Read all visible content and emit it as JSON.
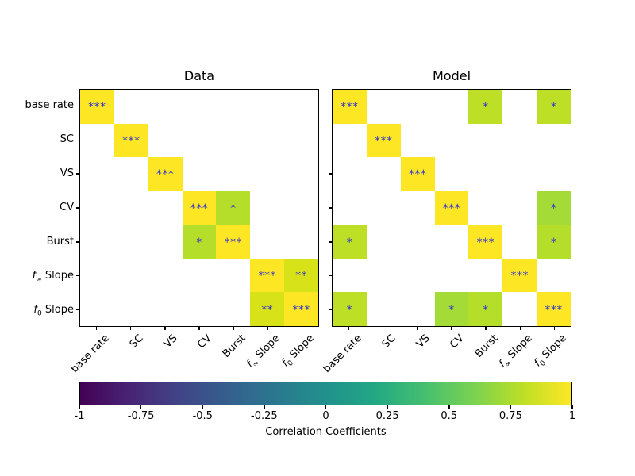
{
  "figure": {
    "background": "#ffffff"
  },
  "colors": {
    "annotation": "#3333cc",
    "axis": "#000000",
    "diagonal": "#fde725"
  },
  "variables": [
    {
      "parts": [
        [
          "t",
          "base rate"
        ]
      ]
    },
    {
      "parts": [
        [
          "t",
          "SC"
        ]
      ]
    },
    {
      "parts": [
        [
          "t",
          "VS"
        ]
      ]
    },
    {
      "parts": [
        [
          "t",
          "CV"
        ]
      ]
    },
    {
      "parts": [
        [
          "t",
          "Burst"
        ]
      ]
    },
    {
      "parts": [
        [
          "i",
          "f"
        ],
        [
          "s",
          "∞"
        ],
        [
          "t",
          " Slope"
        ]
      ]
    },
    {
      "parts": [
        [
          "i",
          "f"
        ],
        [
          "s",
          "0"
        ],
        [
          "t",
          " Slope"
        ]
      ]
    }
  ],
  "panels": [
    {
      "title": "Data",
      "cells": [
        {
          "r": 0,
          "c": 0,
          "color": "#fde725",
          "mark": "***"
        },
        {
          "r": 1,
          "c": 1,
          "color": "#fde725",
          "mark": "***"
        },
        {
          "r": 2,
          "c": 2,
          "color": "#fde725",
          "mark": "***"
        },
        {
          "r": 3,
          "c": 3,
          "color": "#fde725",
          "mark": "***"
        },
        {
          "r": 3,
          "c": 4,
          "color": "#b5de2b",
          "mark": "*"
        },
        {
          "r": 4,
          "c": 3,
          "color": "#b5de2b",
          "mark": "*"
        },
        {
          "r": 4,
          "c": 4,
          "color": "#fde725",
          "mark": "***"
        },
        {
          "r": 5,
          "c": 5,
          "color": "#fde725",
          "mark": "***"
        },
        {
          "r": 5,
          "c": 6,
          "color": "#d8e219",
          "mark": "**"
        },
        {
          "r": 6,
          "c": 5,
          "color": "#d8e219",
          "mark": "**"
        },
        {
          "r": 6,
          "c": 6,
          "color": "#fde725",
          "mark": "***"
        }
      ]
    },
    {
      "title": "Model",
      "cells": [
        {
          "r": 0,
          "c": 0,
          "color": "#fde725",
          "mark": "***"
        },
        {
          "r": 0,
          "c": 4,
          "color": "#bddf26",
          "mark": "*"
        },
        {
          "r": 0,
          "c": 6,
          "color": "#bddf26",
          "mark": "*"
        },
        {
          "r": 1,
          "c": 1,
          "color": "#fde725",
          "mark": "***"
        },
        {
          "r": 2,
          "c": 2,
          "color": "#fde725",
          "mark": "***"
        },
        {
          "r": 3,
          "c": 3,
          "color": "#fde725",
          "mark": "***"
        },
        {
          "r": 3,
          "c": 6,
          "color": "#a5db36",
          "mark": "*"
        },
        {
          "r": 4,
          "c": 0,
          "color": "#bddf26",
          "mark": "*"
        },
        {
          "r": 4,
          "c": 4,
          "color": "#fde725",
          "mark": "***"
        },
        {
          "r": 4,
          "c": 6,
          "color": "#b5de2b",
          "mark": "*"
        },
        {
          "r": 5,
          "c": 5,
          "color": "#fde725",
          "mark": "***"
        },
        {
          "r": 6,
          "c": 0,
          "color": "#bddf26",
          "mark": "*"
        },
        {
          "r": 6,
          "c": 3,
          "color": "#a5db36",
          "mark": "*"
        },
        {
          "r": 6,
          "c": 4,
          "color": "#b5de2b",
          "mark": "*"
        },
        {
          "r": 6,
          "c": 6,
          "color": "#fde725",
          "mark": "***"
        }
      ]
    }
  ],
  "colorbar": {
    "label": "Correlation Coefficients",
    "ticks": [
      "-1",
      "-0.75",
      "-0.5",
      "-0.25",
      "0",
      "0.25",
      "0.5",
      "0.75",
      "1"
    ],
    "gradient": [
      "#440154",
      "#482475",
      "#414487",
      "#355f8d",
      "#2a788e",
      "#21918c",
      "#22a884",
      "#44bf70",
      "#7ad151",
      "#bddf26",
      "#fde725"
    ]
  },
  "chart_data": [
    {
      "type": "heatmap",
      "title": "Data",
      "categories": [
        "base rate",
        "SC",
        "VS",
        "CV",
        "Burst",
        "f∞ Slope",
        "f0 Slope"
      ],
      "colormap": "viridis",
      "value_range": [
        -1,
        1
      ],
      "significance": [
        [
          "***",
          "",
          "",
          "",
          "",
          "",
          ""
        ],
        [
          "",
          "***",
          "",
          "",
          "",
          "",
          ""
        ],
        [
          "",
          "",
          "***",
          "",
          "",
          "",
          ""
        ],
        [
          "",
          "",
          "",
          "***",
          "*",
          "",
          ""
        ],
        [
          "",
          "",
          "",
          "*",
          "***",
          "",
          ""
        ],
        [
          "",
          "",
          "",
          "",
          "",
          "***",
          "**"
        ],
        [
          "",
          "",
          "",
          "",
          "",
          "**",
          "***"
        ]
      ],
      "values_est": [
        [
          1,
          null,
          null,
          null,
          null,
          null,
          null
        ],
        [
          null,
          1,
          null,
          null,
          null,
          null,
          null
        ],
        [
          null,
          null,
          1,
          null,
          null,
          null,
          null
        ],
        [
          null,
          null,
          null,
          1,
          0.76,
          null,
          null
        ],
        [
          null,
          null,
          null,
          0.76,
          1,
          null,
          null
        ],
        [
          null,
          null,
          null,
          null,
          null,
          1,
          0.88
        ],
        [
          null,
          null,
          null,
          null,
          null,
          0.88,
          1
        ]
      ]
    },
    {
      "type": "heatmap",
      "title": "Model",
      "categories": [
        "base rate",
        "SC",
        "VS",
        "CV",
        "Burst",
        "f∞ Slope",
        "f0 Slope"
      ],
      "colormap": "viridis",
      "value_range": [
        -1,
        1
      ],
      "significance": [
        [
          "***",
          "",
          "",
          "",
          "*",
          "",
          "*"
        ],
        [
          "",
          "***",
          "",
          "",
          "",
          "",
          ""
        ],
        [
          "",
          "",
          "***",
          "",
          "",
          "",
          ""
        ],
        [
          "",
          "",
          "",
          "***",
          "",
          "",
          "*"
        ],
        [
          "*",
          "",
          "",
          "",
          "***",
          "",
          "*"
        ],
        [
          "",
          "",
          "",
          "",
          "",
          "***",
          ""
        ],
        [
          "*",
          "",
          "",
          "*",
          "*",
          "",
          "***"
        ]
      ],
      "values_est": [
        [
          1,
          null,
          null,
          null,
          0.8,
          null,
          0.8
        ],
        [
          null,
          1,
          null,
          null,
          null,
          null,
          null
        ],
        [
          null,
          null,
          1,
          null,
          null,
          null,
          null
        ],
        [
          null,
          null,
          null,
          1,
          null,
          null,
          0.7
        ],
        [
          0.8,
          null,
          null,
          null,
          1,
          null,
          0.76
        ],
        [
          null,
          null,
          null,
          null,
          null,
          1,
          null
        ],
        [
          0.8,
          null,
          null,
          0.7,
          0.76,
          null,
          1
        ]
      ],
      "colorbar_label": "Correlation Coefficients",
      "colorbar_ticks": [
        -1,
        -0.75,
        -0.5,
        -0.25,
        0,
        0.25,
        0.5,
        0.75,
        1
      ]
    }
  ]
}
